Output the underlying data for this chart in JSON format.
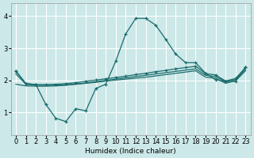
{
  "xlabel": "Humidex (Indice chaleur)",
  "bg_color": "#cce8e8",
  "grid_color": "#ffffff",
  "line_color": "#1a6b6b",
  "xlim": [
    -0.5,
    23.5
  ],
  "ylim": [
    0.3,
    4.4
  ],
  "xticks": [
    0,
    1,
    2,
    3,
    4,
    5,
    6,
    7,
    8,
    9,
    10,
    11,
    12,
    13,
    14,
    15,
    16,
    17,
    18,
    19,
    20,
    21,
    22,
    23
  ],
  "yticks": [
    1,
    2,
    3,
    4
  ],
  "spike_x": [
    0,
    1,
    2,
    3,
    4,
    5,
    6,
    7,
    8,
    9,
    10,
    11,
    12,
    13,
    14,
    15,
    16,
    17,
    18,
    19,
    20,
    21,
    22,
    23
  ],
  "spike_y": [
    2.3,
    1.9,
    1.87,
    1.25,
    0.82,
    0.72,
    1.12,
    1.05,
    1.75,
    1.88,
    2.6,
    3.45,
    3.93,
    3.93,
    3.72,
    3.28,
    2.82,
    2.55,
    2.55,
    2.22,
    2.02,
    1.97,
    1.97,
    2.42
  ],
  "upper_x": [
    0,
    1,
    2,
    3,
    4,
    5,
    6,
    7,
    8,
    9,
    10,
    11,
    12,
    13,
    14,
    15,
    16,
    17,
    18,
    19,
    20,
    21,
    22,
    23
  ],
  "upper_y": [
    2.28,
    1.9,
    1.87,
    1.87,
    1.88,
    1.9,
    1.93,
    1.97,
    2.01,
    2.05,
    2.09,
    2.13,
    2.18,
    2.22,
    2.27,
    2.31,
    2.36,
    2.4,
    2.44,
    2.21,
    2.17,
    1.98,
    2.06,
    2.4
  ],
  "mid_x": [
    0,
    1,
    2,
    3,
    4,
    5,
    6,
    7,
    8,
    9,
    10,
    11,
    12,
    13,
    14,
    15,
    16,
    17,
    18,
    19,
    20,
    21,
    22,
    23
  ],
  "mid_y": [
    2.2,
    1.88,
    1.85,
    1.85,
    1.85,
    1.86,
    1.89,
    1.92,
    1.96,
    2.0,
    2.04,
    2.08,
    2.12,
    2.16,
    2.2,
    2.24,
    2.28,
    2.32,
    2.36,
    2.16,
    2.12,
    1.96,
    2.03,
    2.35
  ],
  "lower_x": [
    0,
    1,
    2,
    3,
    4,
    5,
    6,
    7,
    8,
    9,
    10,
    11,
    12,
    13,
    14,
    15,
    16,
    17,
    18,
    19,
    20,
    21,
    22,
    23
  ],
  "lower_y": [
    1.88,
    1.83,
    1.82,
    1.82,
    1.83,
    1.85,
    1.88,
    1.91,
    1.94,
    1.98,
    2.01,
    2.04,
    2.07,
    2.1,
    2.14,
    2.18,
    2.22,
    2.26,
    2.3,
    2.1,
    2.07,
    1.91,
    1.99,
    2.3
  ]
}
